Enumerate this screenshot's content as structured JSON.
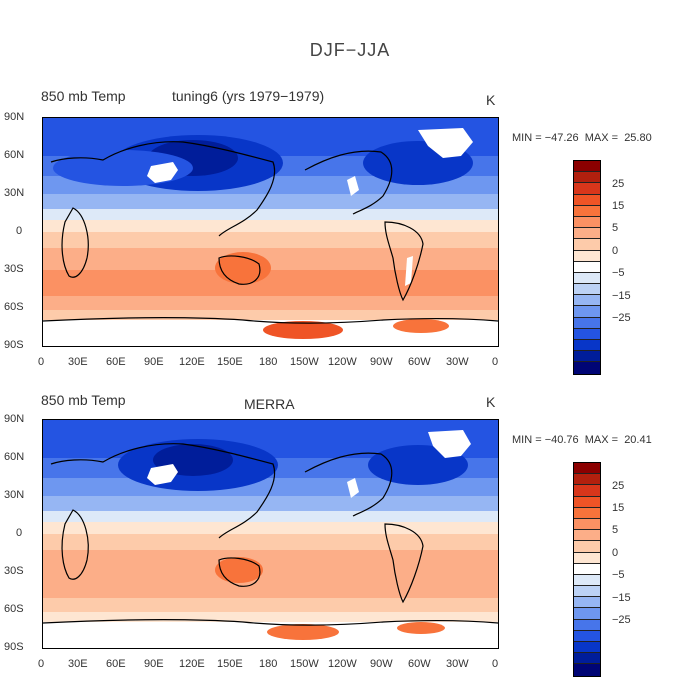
{
  "figure_title": "DJF−JJA",
  "colorbar_levels": [
    "25",
    "15",
    "5",
    "0",
    "−5",
    "−15",
    "−25"
  ],
  "colorbar_colors": [
    "#8b0000",
    "#b2200e",
    "#d8361b",
    "#ef5426",
    "#f8733b",
    "#fb9163",
    "#fcae88",
    "#fdcbaa",
    "#fee6d2",
    "#ffffff",
    "#dde9f8",
    "#bcd2f5",
    "#96b6f3",
    "#6e97f0",
    "#4775ea",
    "#2454e2",
    "#0836c8",
    "#001d9a",
    "#000575"
  ],
  "x_ticks": [
    "0",
    "30E",
    "60E",
    "90E",
    "120E",
    "150E",
    "180",
    "150W",
    "120W",
    "90W",
    "60W",
    "30W",
    "0"
  ],
  "y_ticks": [
    "90N",
    "60N",
    "30N",
    "0",
    "30S",
    "60S",
    "90S"
  ],
  "panels": [
    {
      "variable": "850 mb Temp",
      "case": "tuning6 (yrs 1979−1979)",
      "units": "K",
      "stats": "MIN = −47.26  MAX =  25.80",
      "min": -47.26,
      "max": 25.8
    },
    {
      "variable": "850 mb Temp",
      "case": "MERRA",
      "units": "K",
      "stats": "MIN = −40.76  MAX =  20.41",
      "min": -40.76,
      "max": 20.41
    }
  ]
}
